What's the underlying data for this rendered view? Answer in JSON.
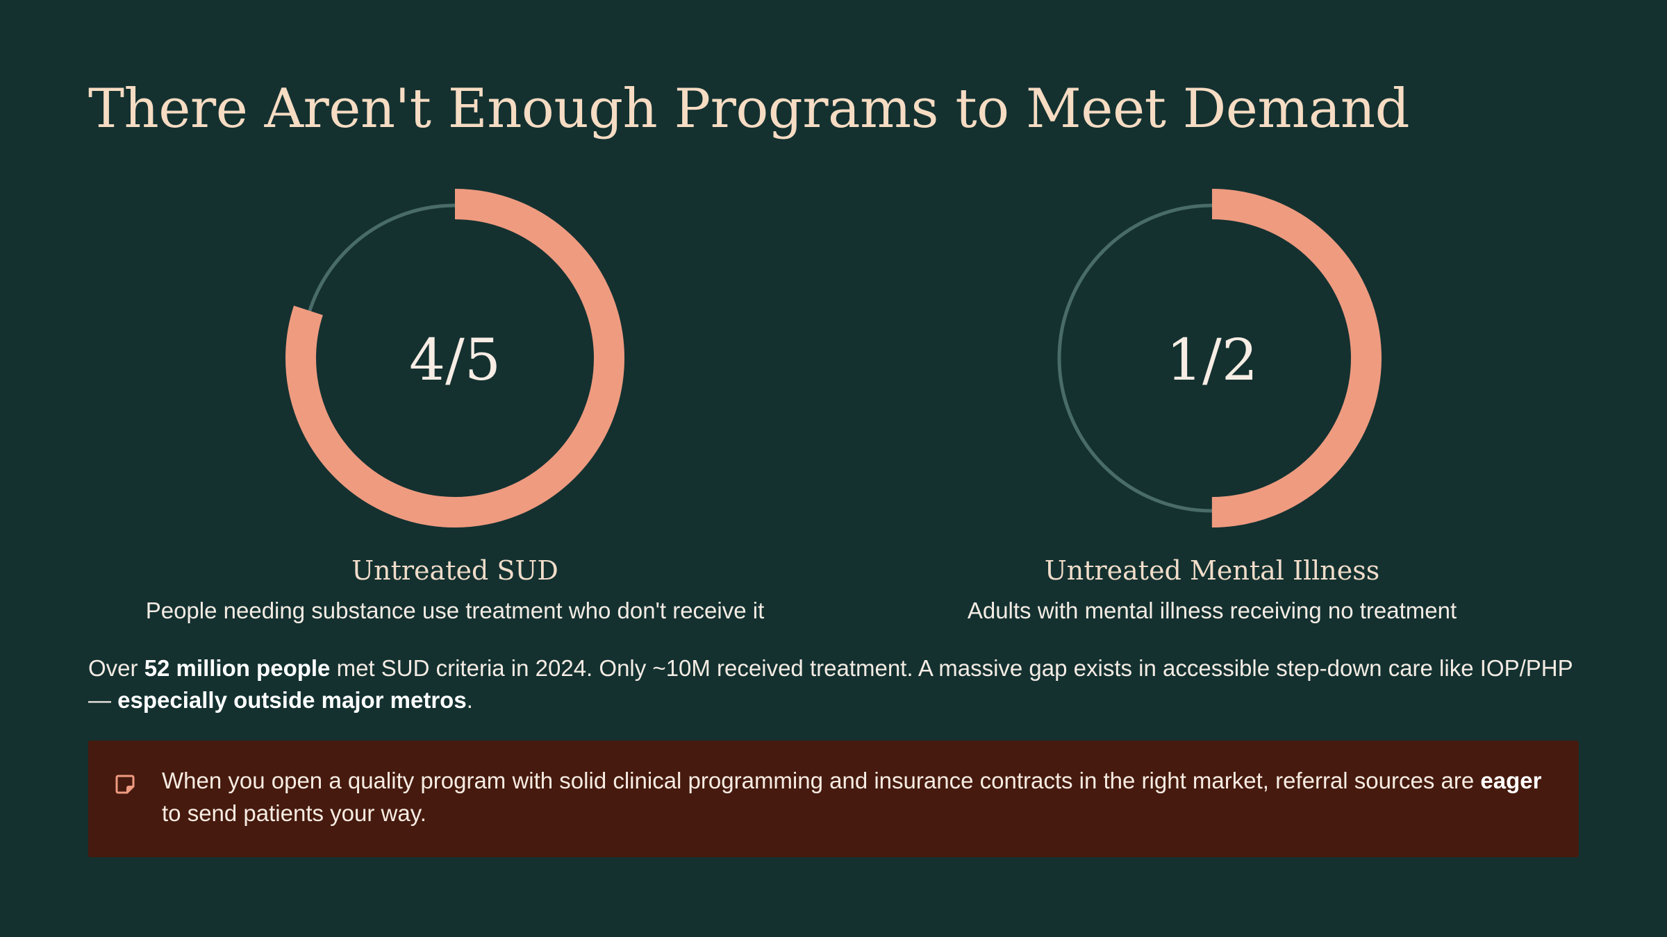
{
  "title": "There Aren't Enough Programs to Meet Demand",
  "colors": {
    "background": "#143130",
    "accent": "#ef9b80",
    "track": "#4a6c68",
    "callout_bg": "#461a0e"
  },
  "stats": [
    {
      "value_label": "4/5",
      "fraction": 0.8,
      "heading": "Untreated SUD",
      "description": "People needing substance use treatment who don't receive it"
    },
    {
      "value_label": "1/2",
      "fraction": 0.5,
      "heading": "Untreated Mental Illness",
      "description": "Adults with mental illness receiving no treatment"
    }
  ],
  "paragraph": {
    "t1": "Over ",
    "b1": "52 million people",
    "t2": " met SUD criteria in 2024. Only ~10M received treatment. A massive gap exists in accessible step-down care like IOP/PHP — ",
    "b2": "especially outside major metros",
    "t3": "."
  },
  "callout": {
    "icon": "sticky-note-icon",
    "t1": "When you open a quality program with solid clinical programming and insurance contracts in the right market, referral sources are ",
    "b1": "eager",
    "t2": " to send patients your way."
  }
}
